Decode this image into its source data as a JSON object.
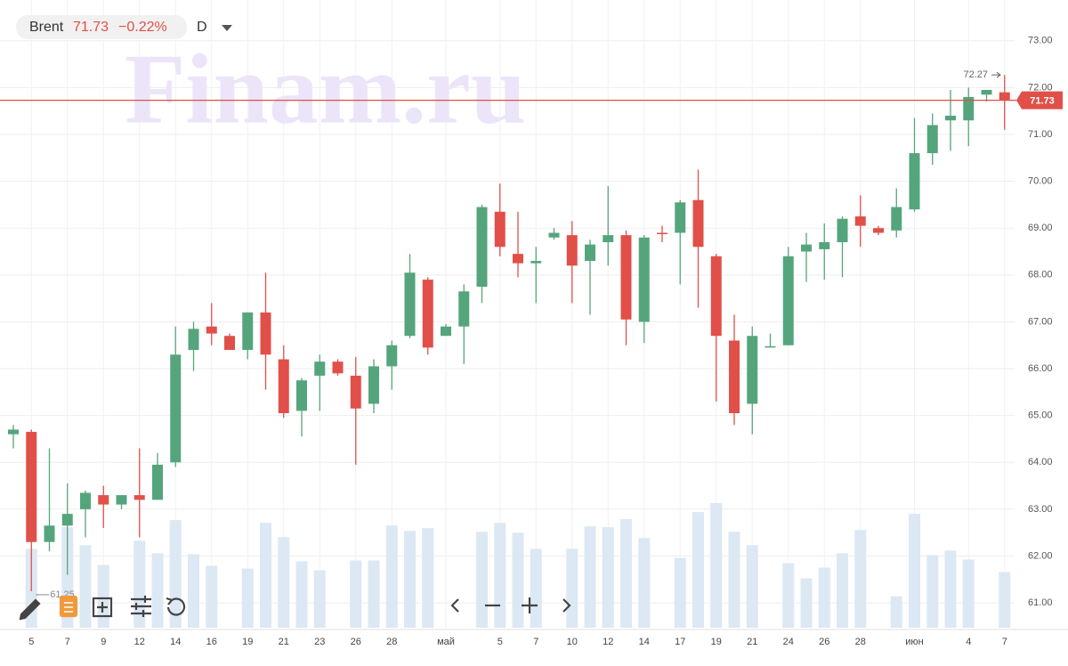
{
  "chart_data": {
    "type": "candlestick",
    "title": "Brent",
    "last_price": 71.73,
    "change": {
      "value": -0.22,
      "label": "−0.22%"
    },
    "interval": "D",
    "watermark": "Finam.ru",
    "high_annotation": 72.27,
    "low_annotation": 61.25,
    "up_color": "#55a57c",
    "down_color": "#e05049",
    "volume_color": "#dce8f3",
    "grid": true,
    "ylim": [
      60.47,
      73.87
    ],
    "yticks": [
      {
        "value": 61,
        "label": "61.00"
      },
      {
        "value": 62,
        "label": "62.00"
      },
      {
        "value": 63,
        "label": "63.00"
      },
      {
        "value": 64,
        "label": "64.00"
      },
      {
        "value": 65,
        "label": "65.00"
      },
      {
        "value": 66,
        "label": "66.00"
      },
      {
        "value": 67,
        "label": "67.00"
      },
      {
        "value": 68,
        "label": "68.00"
      },
      {
        "value": 69,
        "label": "69.00"
      },
      {
        "value": 70,
        "label": "70.00"
      },
      {
        "value": 71,
        "label": "71.00"
      },
      {
        "value": 72,
        "label": "72.00"
      },
      {
        "value": 73,
        "label": "73.00"
      }
    ],
    "categories": [
      null,
      "5",
      null,
      "7",
      null,
      "9",
      null,
      "12",
      null,
      "14",
      null,
      "16",
      null,
      "19",
      null,
      "21",
      null,
      "23",
      null,
      "26",
      null,
      "28",
      null,
      null,
      "май",
      null,
      null,
      "5",
      null,
      "7",
      null,
      "10",
      null,
      "12",
      null,
      "14",
      null,
      "17",
      null,
      "19",
      null,
      "21",
      null,
      "24",
      null,
      "26",
      null,
      "28",
      null,
      null,
      "июн",
      null,
      null,
      "4",
      null,
      "7"
    ],
    "open": [
      64.6,
      64.65,
      62.3,
      62.65,
      63.0,
      63.3,
      63.1,
      63.3,
      63.2,
      64.0,
      66.4,
      66.9,
      66.7,
      66.4,
      67.2,
      66.2,
      65.1,
      65.85,
      66.15,
      65.85,
      65.25,
      66.05,
      66.7,
      67.9,
      66.7,
      66.9,
      67.75,
      69.35,
      68.45,
      68.25,
      68.8,
      68.85,
      68.3,
      68.7,
      68.85,
      67.0,
      68.9,
      68.9,
      69.6,
      68.4,
      66.6,
      65.25,
      66.45,
      66.5,
      68.5,
      68.55,
      68.7,
      69.25,
      69.0,
      68.95,
      69.4,
      70.6,
      71.3,
      71.3,
      71.85,
      71.9
    ],
    "high": [
      64.8,
      64.7,
      64.3,
      63.55,
      63.4,
      63.5,
      63.3,
      64.3,
      64.2,
      66.9,
      67.0,
      67.4,
      66.75,
      67.2,
      68.05,
      66.5,
      65.8,
      66.3,
      66.2,
      66.25,
      66.2,
      66.6,
      68.45,
      67.95,
      66.95,
      67.8,
      69.5,
      69.95,
      69.35,
      68.6,
      69.0,
      69.15,
      68.75,
      69.9,
      68.95,
      68.85,
      69.05,
      69.6,
      70.25,
      68.45,
      67.15,
      66.9,
      66.75,
      68.6,
      68.9,
      69.1,
      69.25,
      69.7,
      69.05,
      69.85,
      71.35,
      71.45,
      71.95,
      72.0,
      71.95,
      72.27
    ],
    "low": [
      64.3,
      61.25,
      62.1,
      61.6,
      62.4,
      62.6,
      63.0,
      62.4,
      63.2,
      63.9,
      65.95,
      66.5,
      66.4,
      66.2,
      65.55,
      64.95,
      64.55,
      65.1,
      65.85,
      63.95,
      65.05,
      65.55,
      66.65,
      66.3,
      66.7,
      66.1,
      67.4,
      68.4,
      67.95,
      67.4,
      68.75,
      67.4,
      67.15,
      68.2,
      66.5,
      66.55,
      68.7,
      67.8,
      67.3,
      65.3,
      64.8,
      64.6,
      66.45,
      66.5,
      67.85,
      67.9,
      67.95,
      68.6,
      68.85,
      68.8,
      69.35,
      70.35,
      70.65,
      70.75,
      71.7,
      71.1
    ],
    "close": [
      64.7,
      62.3,
      62.65,
      62.9,
      63.35,
      63.1,
      63.3,
      63.2,
      63.95,
      66.3,
      66.85,
      66.75,
      66.4,
      67.2,
      66.3,
      65.05,
      65.75,
      66.15,
      65.9,
      65.15,
      66.05,
      66.5,
      68.05,
      66.45,
      66.9,
      67.65,
      69.45,
      68.6,
      68.25,
      68.3,
      68.9,
      68.2,
      68.65,
      68.85,
      67.05,
      68.8,
      68.88,
      69.55,
      68.6,
      66.7,
      65.05,
      66.7,
      66.48,
      68.4,
      68.65,
      68.7,
      69.2,
      69.05,
      68.9,
      69.45,
      70.6,
      71.2,
      71.4,
      71.8,
      71.95,
      71.73
    ],
    "volume": [
      null,
      88,
      null,
      112,
      92,
      70,
      null,
      97,
      83,
      120,
      82,
      69,
      null,
      66,
      117,
      101,
      74,
      64,
      null,
      75,
      75,
      114,
      108,
      111,
      null,
      null,
      107,
      117,
      106,
      88,
      null,
      88,
      113,
      112,
      121,
      100,
      null,
      78,
      129,
      139,
      107,
      92,
      null,
      72,
      55,
      67,
      83,
      109,
      null,
      35,
      127,
      81,
      86,
      76,
      null,
      62
    ]
  }
}
